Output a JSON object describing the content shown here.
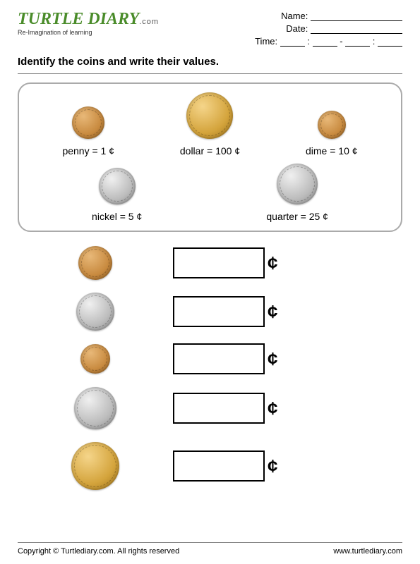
{
  "logo": {
    "main": "TURTLE DIARY",
    "dom": ".com",
    "tag": "Re-Imagination of learning"
  },
  "info": {
    "name": "Name:",
    "date": "Date:",
    "time": "Time:"
  },
  "instruction": "Identify the coins and write their values.",
  "cent": "¢",
  "legend": [
    {
      "name": "penny",
      "value": 1,
      "color": "copper",
      "size": 46
    },
    {
      "name": "nickel",
      "value": 5,
      "color": "silver",
      "size": 52
    },
    {
      "name": "dollar",
      "value": 100,
      "color": "gold",
      "size": 66
    },
    {
      "name": "quarter",
      "value": 25,
      "color": "silver",
      "size": 58
    },
    {
      "name": "dime",
      "value": 10,
      "color": "copper",
      "size": 40
    }
  ],
  "questions": [
    {
      "coin": "penny",
      "color": "copper",
      "size": 48
    },
    {
      "coin": "nickel",
      "color": "silver",
      "size": 54
    },
    {
      "coin": "dime",
      "color": "copper",
      "size": 42
    },
    {
      "coin": "quarter",
      "color": "silver",
      "size": 60
    },
    {
      "coin": "dollar",
      "color": "gold",
      "size": 68
    }
  ],
  "footer": {
    "copy": "Copyright © Turtlediary.com. All rights reserved",
    "url": "www.turtlediary.com"
  }
}
